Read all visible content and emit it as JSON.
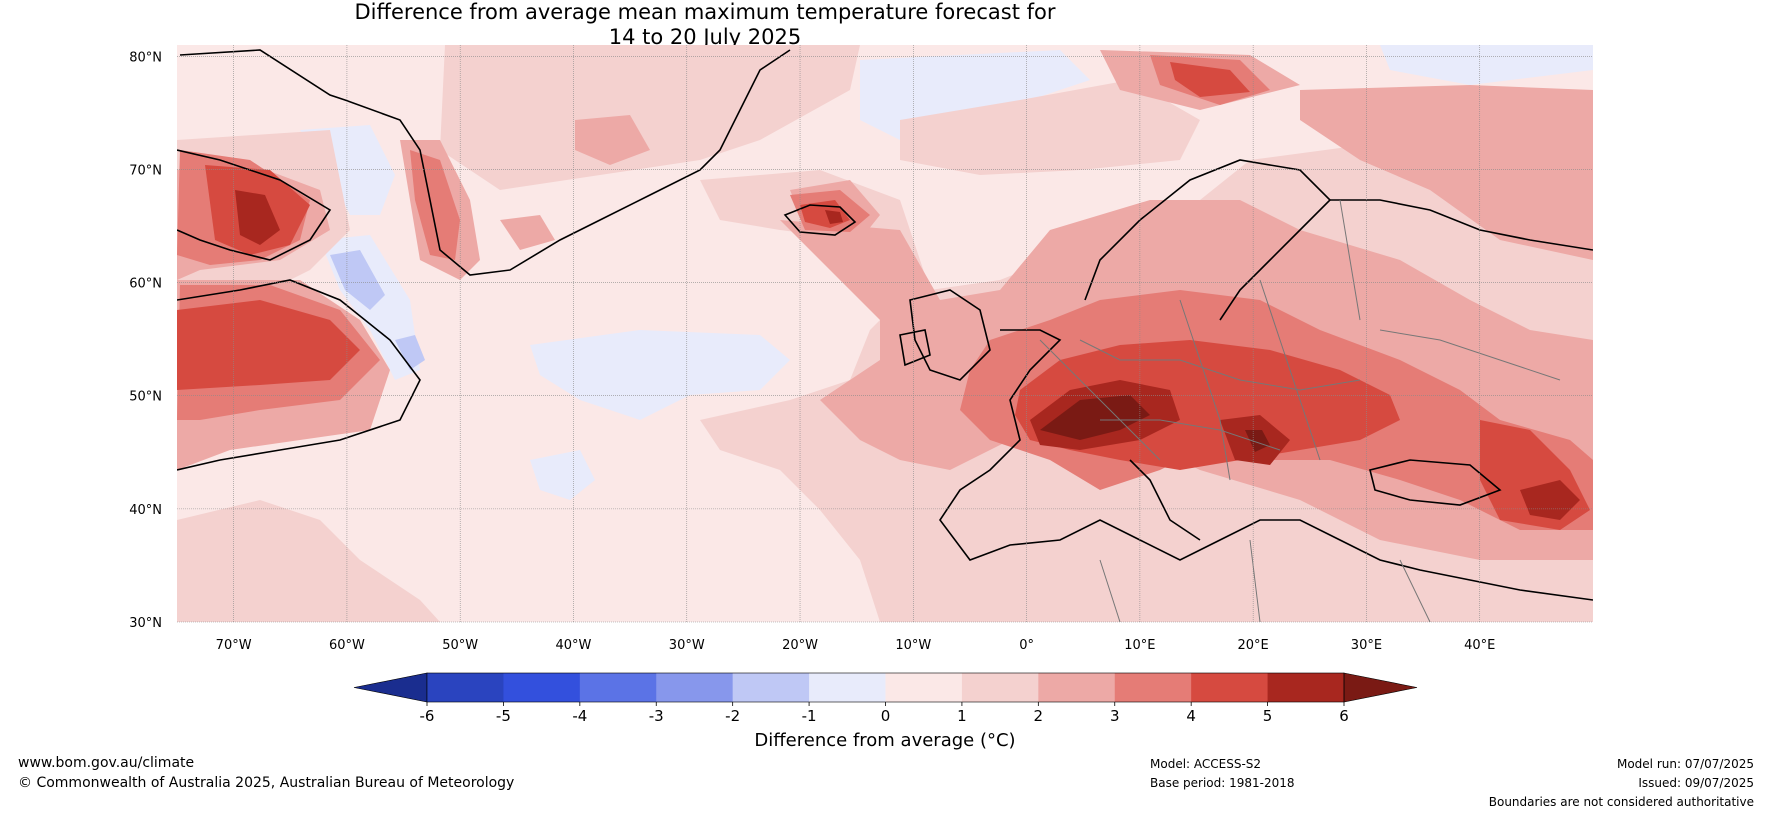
{
  "title": {
    "line1": "Difference from average mean maximum temperature forecast for",
    "line2": "14 to 20 July 2025"
  },
  "map": {
    "lat_labels": [
      "80°N",
      "70°N",
      "60°N",
      "50°N",
      "40°N",
      "30°N"
    ],
    "lon_labels": [
      "70°W",
      "60°W",
      "50°W",
      "40°W",
      "30°W",
      "20°W",
      "10°W",
      "0°",
      "10°E",
      "20°E",
      "30°E",
      "40°E"
    ],
    "lat_values": [
      80,
      70,
      60,
      50,
      40,
      30
    ],
    "lon_values": [
      -70,
      -60,
      -50,
      -40,
      -30,
      -20,
      -10,
      0,
      10,
      20,
      30,
      40
    ],
    "lon_range": [
      -75,
      50
    ],
    "lat_range": [
      30,
      81
    ]
  },
  "colorbar": {
    "label": "Difference from average (°C)",
    "ticks": [
      "-6",
      "-5",
      "-4",
      "-3",
      "-2",
      "-1",
      "0",
      "1",
      "2",
      "3",
      "4",
      "5",
      "6"
    ],
    "colors": [
      "#1a2d8f",
      "#2a44bf",
      "#3350dd",
      "#5b73e6",
      "#8797ec",
      "#bfc8f5",
      "#e8ebfb",
      "#fbe8e7",
      "#f4d1cf",
      "#eda9a6",
      "#e57c76",
      "#d64a40",
      "#a8271f",
      "#7a1a14"
    ]
  },
  "footer": {
    "site": "www.bom.gov.au/climate",
    "copyright": "© Commonwealth of Australia 2025, Australian Bureau of Meteorology",
    "model": "Model: ACCESS-S2",
    "base_period": "Base period: 1981-2018",
    "model_run": "Model run: 07/07/2025",
    "issued": "Issued: 09/07/2025",
    "disclaimer": "Boundaries are not considered authoritative"
  }
}
